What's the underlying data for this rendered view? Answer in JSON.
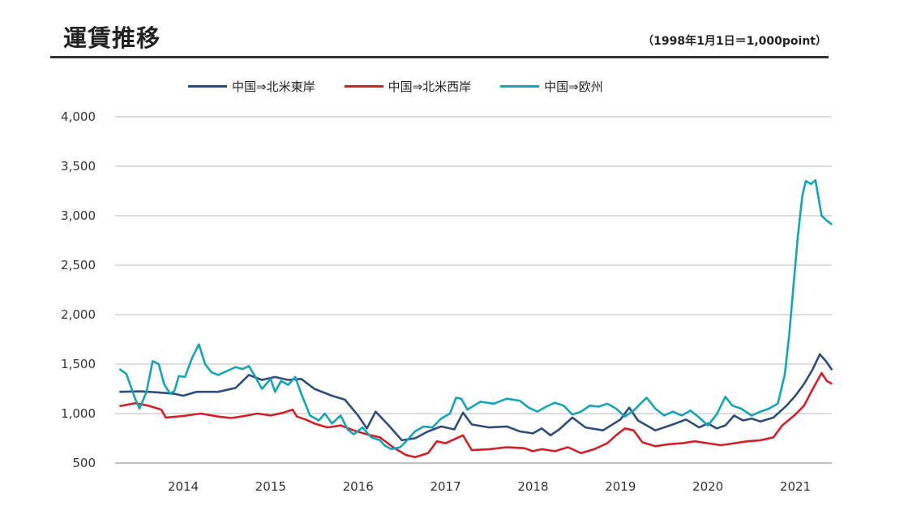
{
  "header": {
    "title": "運賃推移",
    "subtitle": "（1998年1月1日＝1,000point）"
  },
  "chart_data": {
    "type": "line",
    "title": "運賃推移",
    "subtitle": "（1998年1月1日＝1,000point）",
    "xlabel": "",
    "ylabel": "",
    "ylim": [
      500,
      4000
    ],
    "xlim": [
      2013.27,
      2021.42
    ],
    "yticks": [
      500,
      1000,
      1500,
      2000,
      2500,
      3000,
      3500,
      4000
    ],
    "ytick_labels": [
      "500",
      "1,000",
      "1,500",
      "2,000",
      "2,500",
      "3,000",
      "3,500",
      "4,000"
    ],
    "xticks": [
      2014,
      2015,
      2016,
      2017,
      2018,
      2019,
      2020,
      2021
    ],
    "xtick_labels": [
      "2014",
      "2015",
      "2016",
      "2017",
      "2018",
      "2019",
      "2020",
      "2021"
    ],
    "grid": "horizontal",
    "legend": "top",
    "series": [
      {
        "name": "中国⇒北米東岸",
        "color": "#2e4d7b",
        "points": [
          [
            2013.27,
            1220
          ],
          [
            2013.5,
            1225
          ],
          [
            2013.7,
            1215
          ],
          [
            2013.9,
            1200
          ],
          [
            2014.0,
            1180
          ],
          [
            2014.15,
            1220
          ],
          [
            2014.4,
            1220
          ],
          [
            2014.6,
            1260
          ],
          [
            2014.75,
            1390
          ],
          [
            2014.9,
            1340
          ],
          [
            2015.05,
            1370
          ],
          [
            2015.2,
            1340
          ],
          [
            2015.35,
            1350
          ],
          [
            2015.5,
            1250
          ],
          [
            2015.7,
            1180
          ],
          [
            2015.85,
            1140
          ],
          [
            2016.0,
            980
          ],
          [
            2016.1,
            850
          ],
          [
            2016.2,
            1020
          ],
          [
            2016.35,
            880
          ],
          [
            2016.5,
            730
          ],
          [
            2016.65,
            750
          ],
          [
            2016.8,
            820
          ],
          [
            2016.95,
            870
          ],
          [
            2017.1,
            840
          ],
          [
            2017.2,
            1010
          ],
          [
            2017.3,
            890
          ],
          [
            2017.5,
            860
          ],
          [
            2017.7,
            870
          ],
          [
            2017.85,
            820
          ],
          [
            2018.0,
            800
          ],
          [
            2018.1,
            850
          ],
          [
            2018.2,
            780
          ],
          [
            2018.3,
            840
          ],
          [
            2018.45,
            960
          ],
          [
            2018.6,
            860
          ],
          [
            2018.8,
            830
          ],
          [
            2019.0,
            940
          ],
          [
            2019.1,
            1060
          ],
          [
            2019.2,
            930
          ],
          [
            2019.4,
            830
          ],
          [
            2019.6,
            890
          ],
          [
            2019.75,
            940
          ],
          [
            2019.9,
            860
          ],
          [
            2020.0,
            900
          ],
          [
            2020.1,
            850
          ],
          [
            2020.2,
            880
          ],
          [
            2020.3,
            980
          ],
          [
            2020.4,
            930
          ],
          [
            2020.5,
            950
          ],
          [
            2020.6,
            920
          ],
          [
            2020.75,
            960
          ],
          [
            2020.9,
            1080
          ],
          [
            2021.0,
            1180
          ],
          [
            2021.1,
            1300
          ],
          [
            2021.2,
            1450
          ],
          [
            2021.28,
            1600
          ],
          [
            2021.35,
            1530
          ],
          [
            2021.42,
            1440
          ]
        ]
      },
      {
        "name": "中国⇒北米西岸",
        "color": "#d0202a",
        "points": [
          [
            2013.27,
            1075
          ],
          [
            2013.45,
            1105
          ],
          [
            2013.6,
            1080
          ],
          [
            2013.75,
            1040
          ],
          [
            2013.8,
            960
          ],
          [
            2014.0,
            975
          ],
          [
            2014.2,
            1000
          ],
          [
            2014.4,
            970
          ],
          [
            2014.55,
            955
          ],
          [
            2014.7,
            975
          ],
          [
            2014.85,
            1000
          ],
          [
            2015.0,
            980
          ],
          [
            2015.15,
            1010
          ],
          [
            2015.25,
            1040
          ],
          [
            2015.3,
            970
          ],
          [
            2015.4,
            940
          ],
          [
            2015.5,
            900
          ],
          [
            2015.65,
            860
          ],
          [
            2015.8,
            880
          ],
          [
            2015.95,
            830
          ],
          [
            2016.1,
            790
          ],
          [
            2016.25,
            760
          ],
          [
            2016.4,
            660
          ],
          [
            2016.55,
            580
          ],
          [
            2016.65,
            560
          ],
          [
            2016.8,
            600
          ],
          [
            2016.9,
            720
          ],
          [
            2017.0,
            700
          ],
          [
            2017.1,
            740
          ],
          [
            2017.2,
            780
          ],
          [
            2017.3,
            630
          ],
          [
            2017.5,
            640
          ],
          [
            2017.7,
            660
          ],
          [
            2017.9,
            650
          ],
          [
            2018.0,
            620
          ],
          [
            2018.1,
            640
          ],
          [
            2018.25,
            620
          ],
          [
            2018.4,
            660
          ],
          [
            2018.55,
            600
          ],
          [
            2018.7,
            640
          ],
          [
            2018.85,
            700
          ],
          [
            2018.95,
            780
          ],
          [
            2019.05,
            850
          ],
          [
            2019.15,
            830
          ],
          [
            2019.25,
            710
          ],
          [
            2019.4,
            670
          ],
          [
            2019.55,
            690
          ],
          [
            2019.7,
            700
          ],
          [
            2019.85,
            720
          ],
          [
            2020.0,
            700
          ],
          [
            2020.15,
            680
          ],
          [
            2020.3,
            700
          ],
          [
            2020.45,
            720
          ],
          [
            2020.6,
            730
          ],
          [
            2020.75,
            760
          ],
          [
            2020.85,
            880
          ],
          [
            2021.0,
            990
          ],
          [
            2021.1,
            1080
          ],
          [
            2021.2,
            1250
          ],
          [
            2021.3,
            1410
          ],
          [
            2021.36,
            1330
          ],
          [
            2021.42,
            1300
          ]
        ]
      },
      {
        "name": "中国⇒欧州",
        "color": "#16a3b6",
        "points": [
          [
            2013.27,
            1450
          ],
          [
            2013.35,
            1400
          ],
          [
            2013.45,
            1150
          ],
          [
            2013.5,
            1050
          ],
          [
            2013.58,
            1220
          ],
          [
            2013.65,
            1530
          ],
          [
            2013.72,
            1500
          ],
          [
            2013.78,
            1300
          ],
          [
            2013.85,
            1200
          ],
          [
            2013.9,
            1230
          ],
          [
            2013.95,
            1380
          ],
          [
            2014.02,
            1370
          ],
          [
            2014.1,
            1560
          ],
          [
            2014.18,
            1700
          ],
          [
            2014.25,
            1500
          ],
          [
            2014.32,
            1420
          ],
          [
            2014.4,
            1390
          ],
          [
            2014.5,
            1430
          ],
          [
            2014.6,
            1470
          ],
          [
            2014.68,
            1450
          ],
          [
            2014.75,
            1480
          ],
          [
            2014.82,
            1380
          ],
          [
            2014.9,
            1250
          ],
          [
            2015.0,
            1350
          ],
          [
            2015.05,
            1220
          ],
          [
            2015.12,
            1330
          ],
          [
            2015.2,
            1290
          ],
          [
            2015.28,
            1370
          ],
          [
            2015.35,
            1200
          ],
          [
            2015.45,
            980
          ],
          [
            2015.55,
            930
          ],
          [
            2015.62,
            1000
          ],
          [
            2015.7,
            900
          ],
          [
            2015.8,
            980
          ],
          [
            2015.88,
            840
          ],
          [
            2015.95,
            790
          ],
          [
            2016.05,
            860
          ],
          [
            2016.15,
            760
          ],
          [
            2016.25,
            730
          ],
          [
            2016.3,
            680
          ],
          [
            2016.38,
            640
          ],
          [
            2016.48,
            660
          ],
          [
            2016.55,
            720
          ],
          [
            2016.65,
            820
          ],
          [
            2016.75,
            870
          ],
          [
            2016.85,
            860
          ],
          [
            2016.95,
            950
          ],
          [
            2017.05,
            1000
          ],
          [
            2017.12,
            1160
          ],
          [
            2017.18,
            1150
          ],
          [
            2017.25,
            1040
          ],
          [
            2017.4,
            1120
          ],
          [
            2017.55,
            1100
          ],
          [
            2017.7,
            1150
          ],
          [
            2017.85,
            1130
          ],
          [
            2017.95,
            1060
          ],
          [
            2018.05,
            1020
          ],
          [
            2018.15,
            1070
          ],
          [
            2018.25,
            1110
          ],
          [
            2018.35,
            1080
          ],
          [
            2018.45,
            990
          ],
          [
            2018.55,
            1020
          ],
          [
            2018.65,
            1080
          ],
          [
            2018.75,
            1070
          ],
          [
            2018.85,
            1100
          ],
          [
            2018.95,
            1050
          ],
          [
            2019.05,
            970
          ],
          [
            2019.15,
            1030
          ],
          [
            2019.25,
            1120
          ],
          [
            2019.3,
            1160
          ],
          [
            2019.4,
            1050
          ],
          [
            2019.5,
            980
          ],
          [
            2019.6,
            1020
          ],
          [
            2019.7,
            980
          ],
          [
            2019.8,
            1030
          ],
          [
            2019.9,
            960
          ],
          [
            2020.0,
            880
          ],
          [
            2020.1,
            990
          ],
          [
            2020.15,
            1080
          ],
          [
            2020.2,
            1170
          ],
          [
            2020.28,
            1080
          ],
          [
            2020.38,
            1050
          ],
          [
            2020.5,
            980
          ],
          [
            2020.6,
            1020
          ],
          [
            2020.7,
            1050
          ],
          [
            2020.8,
            1100
          ],
          [
            2020.88,
            1400
          ],
          [
            2020.93,
            1800
          ],
          [
            2020.98,
            2300
          ],
          [
            2021.03,
            2800
          ],
          [
            2021.08,
            3200
          ],
          [
            2021.12,
            3350
          ],
          [
            2021.18,
            3320
          ],
          [
            2021.23,
            3360
          ],
          [
            2021.3,
            3000
          ],
          [
            2021.36,
            2950
          ],
          [
            2021.42,
            2910
          ]
        ]
      }
    ]
  }
}
